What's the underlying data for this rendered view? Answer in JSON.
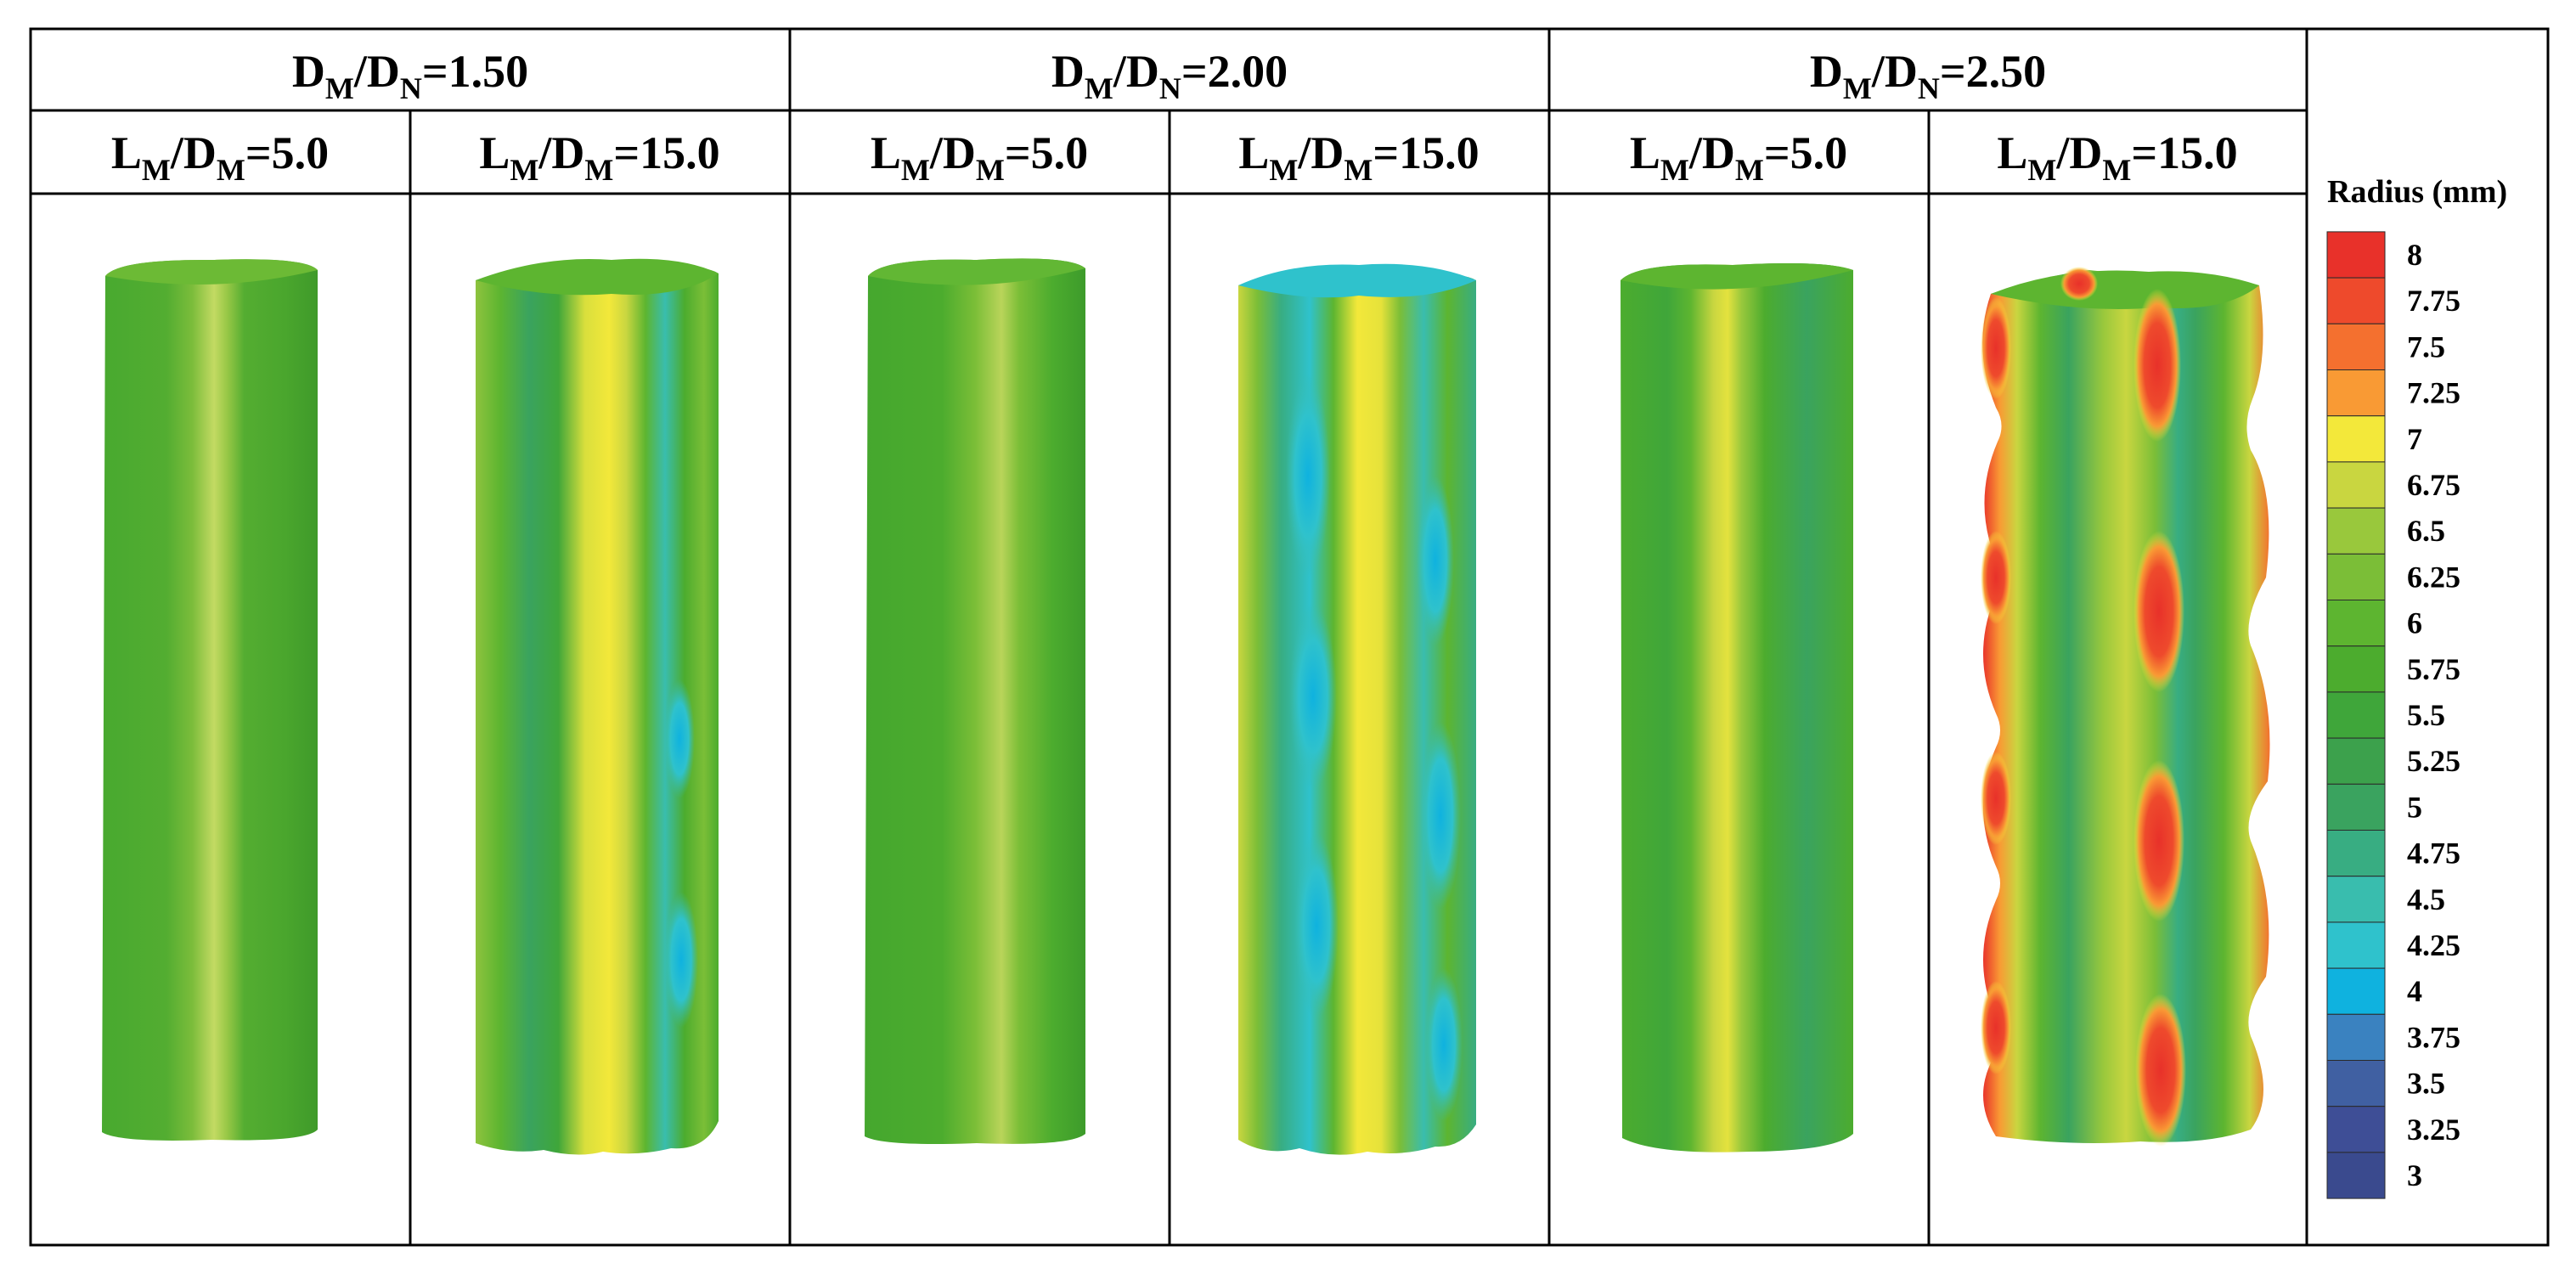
{
  "groups": [
    {
      "label_main": "D",
      "label_sub1": "M",
      "label_sep": "/D",
      "label_sub2": "N",
      "label_value": "=1.50",
      "cells": [
        {
          "main": "L",
          "sub1": "M",
          "sep": "/D",
          "sub2": "M",
          "value": "=5.0"
        },
        {
          "main": "L",
          "sub1": "M",
          "sep": "/D",
          "sub2": "M",
          "value": "=15.0"
        }
      ]
    },
    {
      "label_main": "D",
      "label_sub1": "M",
      "label_sep": "/D",
      "label_sub2": "N",
      "label_value": "=2.00",
      "cells": [
        {
          "main": "L",
          "sub1": "M",
          "sep": "/D",
          "sub2": "M",
          "value": "=5.0"
        },
        {
          "main": "L",
          "sub1": "M",
          "sep": "/D",
          "sub2": "M",
          "value": "=15.0"
        }
      ]
    },
    {
      "label_main": "D",
      "label_sub1": "M",
      "label_sep": "/D",
      "label_sub2": "N",
      "label_value": "=2.50",
      "cells": [
        {
          "main": "L",
          "sub1": "M",
          "sep": "/D",
          "sub2": "M",
          "value": "=5.0"
        },
        {
          "main": "L",
          "sub1": "M",
          "sep": "/D",
          "sub2": "M",
          "value": "=15.0"
        }
      ]
    }
  ],
  "colorbar": {
    "title": "Radius (mm)",
    "levels": [
      "8",
      "7.75",
      "7.5",
      "7.25",
      "7",
      "6.75",
      "6.5",
      "6.25",
      "6",
      "5.75",
      "5.5",
      "5.25",
      "5",
      "4.75",
      "4.5",
      "4.25",
      "4",
      "3.75",
      "3.5",
      "3.25",
      "3"
    ],
    "colors": [
      "#e8312a",
      "#ee4a2c",
      "#f4702f",
      "#f99a34",
      "#f3e83a",
      "#c9d640",
      "#99c83c",
      "#7bbe37",
      "#5db530",
      "#4cac2e",
      "#3fa63a",
      "#3ca14c",
      "#3aa35f",
      "#38ad82",
      "#39bdae",
      "#2fc2cc",
      "#0fb2df",
      "#3a82c0",
      "#4060a2",
      "#3e4e96",
      "#3a4a8e"
    ]
  },
  "tubes": [
    {
      "name": "dm1.50-l5",
      "type": "smooth"
    },
    {
      "name": "dm1.50-l15",
      "type": "wavy-mild"
    },
    {
      "name": "dm2.00-l5",
      "type": "smooth"
    },
    {
      "name": "dm2.00-l15",
      "type": "wavy-blue"
    },
    {
      "name": "dm2.50-l5",
      "type": "smooth"
    },
    {
      "name": "dm2.50-l15",
      "type": "bulged-red"
    }
  ]
}
